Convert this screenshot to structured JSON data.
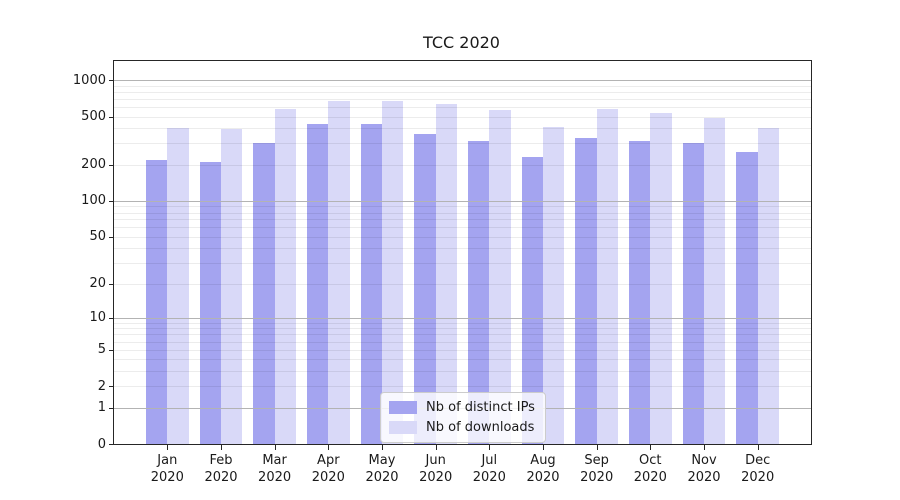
{
  "chart_data": {
    "type": "bar",
    "title": "TCC 2020",
    "categories": [
      "Jan",
      "Feb",
      "Mar",
      "Apr",
      "May",
      "Jun",
      "Jul",
      "Aug",
      "Sep",
      "Oct",
      "Nov",
      "Dec"
    ],
    "category_year": "2020",
    "series": [
      {
        "name": "Nb of distinct IPs",
        "color": "#a4a4f0",
        "values": [
          217,
          211,
          300,
          433,
          431,
          360,
          313,
          231,
          332,
          315,
          300,
          254
        ]
      },
      {
        "name": "Nb of downloads",
        "color": "#d9d9f8",
        "values": [
          399,
          391,
          574,
          668,
          667,
          631,
          566,
          412,
          573,
          534,
          489,
          402
        ]
      }
    ],
    "yscale": "log1p",
    "yticks": [
      0,
      1,
      2,
      5,
      10,
      20,
      50,
      100,
      200,
      500,
      1000
    ],
    "ylim": [
      0,
      1000
    ],
    "xlabel": "",
    "ylabel": "",
    "grid": "horizontal; gray major lines at 1,10,100,1000; faint minor lines at 2-9 per decade, drawn above bars",
    "legend_position": "inside, lower center"
  },
  "colors": {
    "background": "#ffffff",
    "spine": "#262626",
    "text": "#1a1a1a",
    "major_grid": "#b3b3b3",
    "minor_grid": "#ebebeb",
    "legend_border": "#cccccc"
  }
}
